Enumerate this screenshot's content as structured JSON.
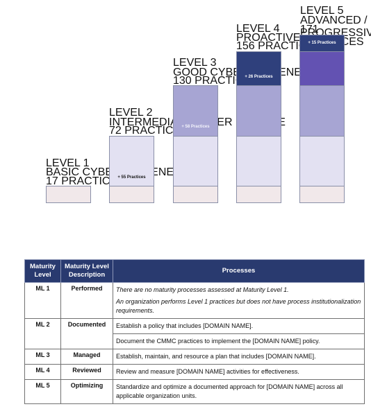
{
  "levels": [
    {
      "title": "LEVEL 1",
      "subtitle": "BASIC CYBER HYGIENE",
      "practices": "17 PRACTICES"
    },
    {
      "title": "LEVEL 2",
      "subtitle": "INTERMEDIATE CYBER HYGIENE",
      "practices": "72 PRACTICES",
      "added": "+ 55 Practices"
    },
    {
      "title": "LEVEL 3",
      "subtitle": "GOOD CYBER HYGIENE",
      "practices": "130 PRACTICES",
      "added": "+ 58 Practices"
    },
    {
      "title": "LEVEL 4",
      "subtitle": "PROACTIVE",
      "practices": "156 PRACTICES",
      "added": "+ 26 Practices"
    },
    {
      "title": "LEVEL 5",
      "subtitle": "ADVANCED / PROGRESSIVE",
      "practices": "171 PRACTICES",
      "added": "+ 15 Practices"
    }
  ],
  "colors": {
    "level1": "#f1e8ea",
    "level2": "#e3e1f2",
    "level3": "#a7a5d3",
    "level4": "#2f407c",
    "level5": "#6352b2",
    "table_header": "#293a6f"
  },
  "table": {
    "headers": {
      "maturity_level": "Maturity Level",
      "description": "Maturity Level Description",
      "processes": "Processes"
    },
    "rows": [
      {
        "level": "ML 1",
        "description": "Performed",
        "processes": [
          "There are no maturity processes assessed at Maturity Level 1.",
          "An organization performs Level 1 practices but does not have process institutionalization requirements."
        ]
      },
      {
        "level": "ML 2",
        "description": "Documented",
        "processes": [
          "Establish a policy that includes [DOMAIN NAME].",
          "Document the CMMC practices to implement the [DOMAIN NAME] policy."
        ]
      },
      {
        "level": "ML 3",
        "description": "Managed",
        "processes": [
          "Establish, maintain, and resource a plan that includes [DOMAIN NAME]."
        ]
      },
      {
        "level": "ML 4",
        "description": "Reviewed",
        "processes": [
          "Review and measure [DOMAIN NAME] activities for effectiveness."
        ]
      },
      {
        "level": "ML 5",
        "description": "Optimizing",
        "processes": [
          "Standardize and optimize a documented approach for [DOMAIN NAME] across all applicable organization units."
        ]
      }
    ]
  }
}
